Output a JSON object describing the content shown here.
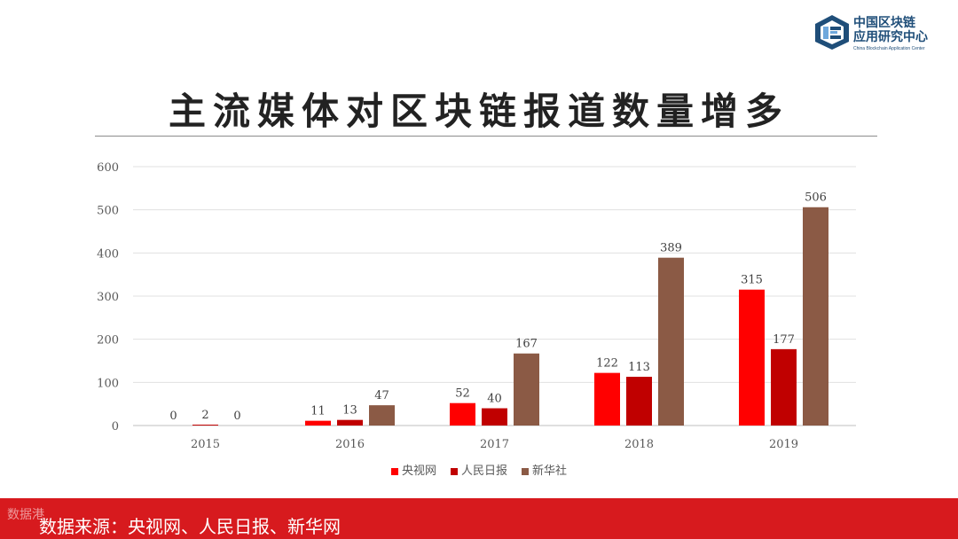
{
  "logo": {
    "cn_line1": "中国区块链",
    "cn_line2": "应用研究中心",
    "en": "China Blockchain Application Center",
    "colors": {
      "primary": "#1f4e79",
      "accent": "#6fa8dc"
    }
  },
  "title": "主流媒体对区块链报道数量增多",
  "footer": {
    "source_text": "数据来源：央视网、人民日报、新华网",
    "watermark": "数据港",
    "background": "#d71a1e"
  },
  "chart_data": {
    "type": "bar",
    "categories": [
      "2015",
      "2016",
      "2017",
      "2018",
      "2019"
    ],
    "series": [
      {
        "name": "央视网",
        "color": "#ff0000",
        "values": [
          0,
          11,
          52,
          122,
          315
        ]
      },
      {
        "name": "人民日报",
        "color": "#c00000",
        "values": [
          2,
          13,
          40,
          113,
          177
        ]
      },
      {
        "name": "新华社",
        "color": "#8b5a45",
        "values": [
          0,
          47,
          167,
          389,
          506
        ]
      }
    ],
    "ylim": [
      0,
      600
    ],
    "yticks": [
      0,
      100,
      200,
      300,
      400,
      500,
      600
    ],
    "grid": true,
    "legend": "bottom",
    "data_labels": true
  }
}
